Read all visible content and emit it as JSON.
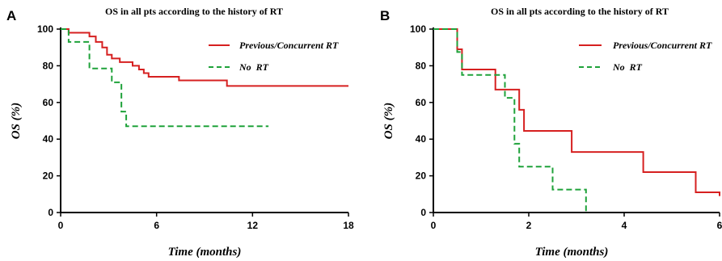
{
  "colors": {
    "previous_rt": "#d62020",
    "no_rt": "#1fa23a"
  },
  "chart_data": [
    {
      "panel": "A",
      "type": "line",
      "step": true,
      "title": "OS in all pts according to the history of RT",
      "xlabel": "Time (months)",
      "ylabel": "OS (%)",
      "xlim": [
        0,
        18
      ],
      "ylim": [
        0,
        100
      ],
      "xticks": [
        0,
        6,
        12,
        18
      ],
      "yticks": [
        0,
        20,
        40,
        60,
        80,
        100
      ],
      "legend": "top-right",
      "series": [
        {
          "name": "Previous/Concurrent RT",
          "color": "#d62020",
          "dash": "solid",
          "x": [
            0,
            0.5,
            1.8,
            2.2,
            2.6,
            2.9,
            3.2,
            3.7,
            4.5,
            4.9,
            5.2,
            5.5,
            7.4,
            10.4,
            18
          ],
          "y": [
            100,
            98,
            96,
            93,
            90,
            86,
            84,
            82,
            80,
            78,
            76,
            74,
            72,
            69,
            69
          ]
        },
        {
          "name": "No  RT",
          "color": "#1fa23a",
          "dash": "dashed",
          "x": [
            0,
            0.5,
            1.8,
            3.2,
            3.8,
            4.1,
            13
          ],
          "y": [
            100,
            93,
            78.5,
            71,
            55,
            47,
            47
          ]
        }
      ]
    },
    {
      "panel": "B",
      "type": "line",
      "step": true,
      "title": "OS in all pts according to the history of RT",
      "xlabel": "Time (months)",
      "ylabel": "OS (%)",
      "xlim": [
        0,
        6
      ],
      "ylim": [
        0,
        100
      ],
      "xticks": [
        0,
        2,
        4,
        6
      ],
      "yticks": [
        0,
        20,
        40,
        60,
        80,
        100
      ],
      "legend": "top-right",
      "series": [
        {
          "name": "Previous/Concurrent RT",
          "color": "#d62020",
          "dash": "solid",
          "x": [
            0,
            0.5,
            0.6,
            1.3,
            1.8,
            1.9,
            2.9,
            4.4,
            5.5,
            6
          ],
          "y": [
            100,
            89,
            78,
            67,
            56,
            44.5,
            33,
            22,
            11,
            9
          ]
        },
        {
          "name": "No  RT",
          "color": "#1fa23a",
          "dash": "dashed",
          "x": [
            0,
            0.5,
            0.6,
            1.5,
            1.7,
            1.8,
            2.5,
            3.2
          ],
          "y": [
            100,
            87.5,
            75,
            62.5,
            37.5,
            25,
            12.5,
            0
          ]
        }
      ]
    }
  ]
}
